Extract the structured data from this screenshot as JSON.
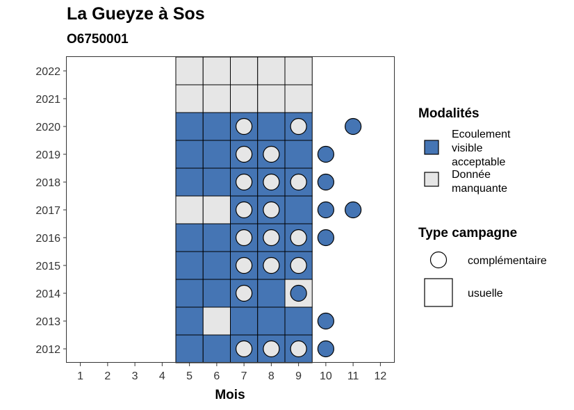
{
  "chart_data": {
    "type": "heatmap",
    "title": "La Gueyze à Sos",
    "subtitle": "O6750001",
    "xlabel": "Mois",
    "ylabel": "",
    "x_ticks": [
      1,
      2,
      3,
      4,
      5,
      6,
      7,
      8,
      9,
      10,
      11,
      12
    ],
    "y_ticks": [
      2012,
      2013,
      2014,
      2015,
      2016,
      2017,
      2018,
      2019,
      2020,
      2021,
      2022
    ],
    "colors": {
      "ecoulement": "#4575b4",
      "manquante": "#e6e6e6"
    },
    "legend": {
      "modalites_title": "Modalités",
      "modalites": [
        {
          "key": "ecoulement",
          "lines": [
            "Ecoulement",
            "visible",
            "acceptable"
          ]
        },
        {
          "key": "manquante",
          "lines": [
            "Donnée",
            "manquante"
          ]
        }
      ],
      "type_title": "Type campagne",
      "types": [
        {
          "key": "complementaire",
          "label": "complémentaire"
        },
        {
          "key": "usuelle",
          "label": "usuelle"
        }
      ]
    },
    "usual_campaigns": [
      {
        "year": 2022,
        "months": {
          "5": "manquante",
          "6": "manquante",
          "7": "manquante",
          "8": "manquante",
          "9": "manquante"
        }
      },
      {
        "year": 2021,
        "months": {
          "5": "manquante",
          "6": "manquante",
          "7": "manquante",
          "8": "manquante",
          "9": "manquante"
        }
      },
      {
        "year": 2020,
        "months": {
          "5": "ecoulement",
          "6": "ecoulement",
          "7": "ecoulement",
          "8": "ecoulement",
          "9": "ecoulement"
        }
      },
      {
        "year": 2019,
        "months": {
          "5": "ecoulement",
          "6": "ecoulement",
          "7": "ecoulement",
          "8": "ecoulement",
          "9": "ecoulement"
        }
      },
      {
        "year": 2018,
        "months": {
          "5": "ecoulement",
          "6": "ecoulement",
          "7": "ecoulement",
          "8": "ecoulement",
          "9": "ecoulement"
        }
      },
      {
        "year": 2017,
        "months": {
          "5": "manquante",
          "6": "manquante",
          "7": "ecoulement",
          "8": "ecoulement",
          "9": "ecoulement"
        }
      },
      {
        "year": 2016,
        "months": {
          "5": "ecoulement",
          "6": "ecoulement",
          "7": "ecoulement",
          "8": "ecoulement",
          "9": "ecoulement"
        }
      },
      {
        "year": 2015,
        "months": {
          "5": "ecoulement",
          "6": "ecoulement",
          "7": "ecoulement",
          "8": "ecoulement",
          "9": "ecoulement"
        }
      },
      {
        "year": 2014,
        "months": {
          "5": "ecoulement",
          "6": "ecoulement",
          "7": "ecoulement",
          "8": "ecoulement",
          "9": "manquante"
        }
      },
      {
        "year": 2013,
        "months": {
          "5": "ecoulement",
          "6": "manquante",
          "7": "ecoulement",
          "8": "ecoulement",
          "9": "ecoulement"
        }
      },
      {
        "year": 2012,
        "months": {
          "5": "ecoulement",
          "6": "ecoulement",
          "7": "ecoulement",
          "8": "ecoulement",
          "9": "ecoulement"
        }
      }
    ],
    "complementary_campaigns": [
      {
        "year": 2020,
        "month": 7,
        "value": "manquante"
      },
      {
        "year": 2020,
        "month": 9,
        "value": "manquante"
      },
      {
        "year": 2020,
        "month": 11,
        "value": "ecoulement"
      },
      {
        "year": 2019,
        "month": 7,
        "value": "manquante"
      },
      {
        "year": 2019,
        "month": 8,
        "value": "manquante"
      },
      {
        "year": 2019,
        "month": 10,
        "value": "ecoulement"
      },
      {
        "year": 2018,
        "month": 7,
        "value": "manquante"
      },
      {
        "year": 2018,
        "month": 8,
        "value": "manquante"
      },
      {
        "year": 2018,
        "month": 9,
        "value": "manquante"
      },
      {
        "year": 2018,
        "month": 10,
        "value": "ecoulement"
      },
      {
        "year": 2017,
        "month": 7,
        "value": "manquante"
      },
      {
        "year": 2017,
        "month": 8,
        "value": "manquante"
      },
      {
        "year": 2017,
        "month": 10,
        "value": "ecoulement"
      },
      {
        "year": 2017,
        "month": 11,
        "value": "ecoulement"
      },
      {
        "year": 2016,
        "month": 7,
        "value": "manquante"
      },
      {
        "year": 2016,
        "month": 8,
        "value": "manquante"
      },
      {
        "year": 2016,
        "month": 9,
        "value": "manquante"
      },
      {
        "year": 2016,
        "month": 10,
        "value": "ecoulement"
      },
      {
        "year": 2015,
        "month": 7,
        "value": "manquante"
      },
      {
        "year": 2015,
        "month": 8,
        "value": "manquante"
      },
      {
        "year": 2015,
        "month": 9,
        "value": "manquante"
      },
      {
        "year": 2014,
        "month": 7,
        "value": "manquante"
      },
      {
        "year": 2014,
        "month": 9,
        "value": "ecoulement"
      },
      {
        "year": 2013,
        "month": 10,
        "value": "ecoulement"
      },
      {
        "year": 2012,
        "month": 7,
        "value": "manquante"
      },
      {
        "year": 2012,
        "month": 8,
        "value": "manquante"
      },
      {
        "year": 2012,
        "month": 9,
        "value": "manquante"
      },
      {
        "year": 2012,
        "month": 10,
        "value": "ecoulement"
      }
    ]
  }
}
